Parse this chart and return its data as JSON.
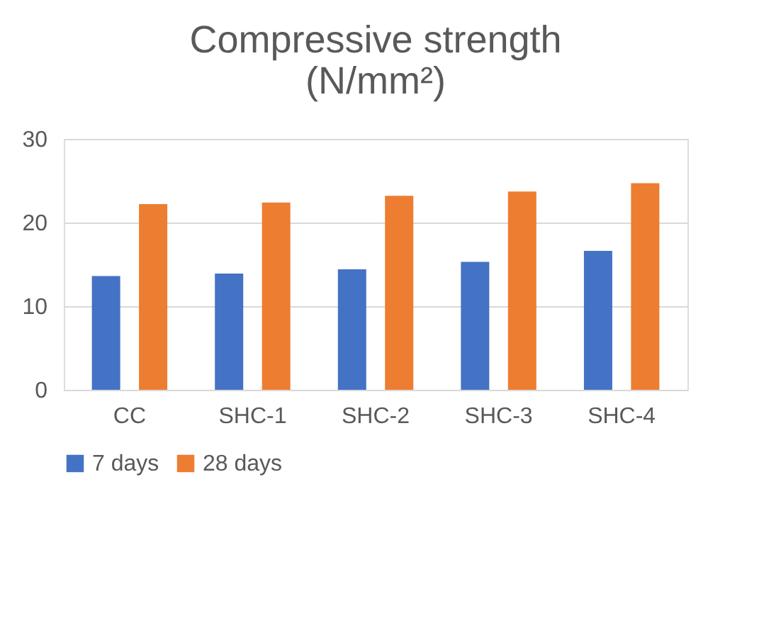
{
  "chart_data": {
    "type": "bar",
    "title": [
      "Compressive strength",
      "(N/mm²)"
    ],
    "categories": [
      "CC",
      "SHC-1",
      "SHC-2",
      "SHC-3",
      "SHC-4"
    ],
    "series": [
      {
        "name": "7 days",
        "color": "#4472c4",
        "values": [
          13.6,
          13.9,
          14.4,
          15.3,
          16.6
        ]
      },
      {
        "name": "28 days",
        "color": "#ed7d31",
        "values": [
          22.2,
          22.4,
          23.2,
          23.7,
          24.7
        ]
      }
    ],
    "ylim": [
      0,
      30
    ],
    "yticks": [
      0,
      10,
      20,
      30
    ],
    "grid": "y",
    "legend": "bottom"
  }
}
